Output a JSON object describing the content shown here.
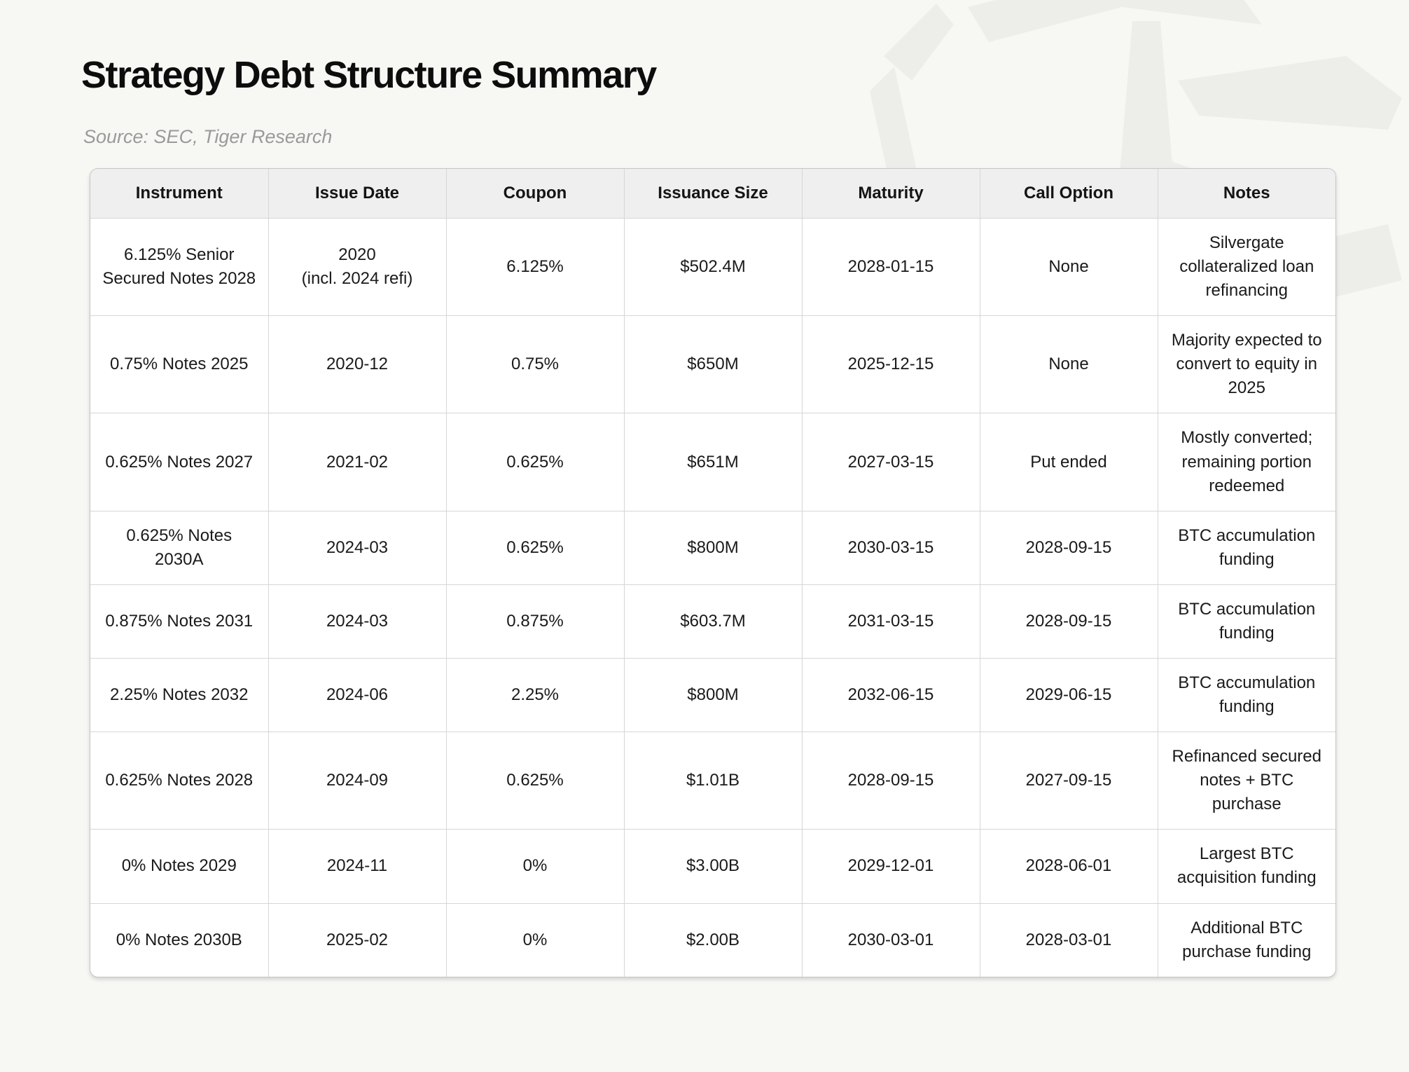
{
  "page": {
    "title": "Strategy Debt Structure Summary",
    "source": "Source: SEC, Tiger Research"
  },
  "colors": {
    "page_bg": "#f7f7f4",
    "header_bg": "#efefef",
    "table_border": "#c6c6c6",
    "grid_line": "#d6d6d6",
    "text": "#1a1a1a",
    "muted_text": "#9a9a9a",
    "watermark": "#edede9"
  },
  "icons": {
    "watermark": "tiger-origami-logo"
  },
  "chart_data": {
    "type": "table",
    "title": "Strategy Debt Structure Summary",
    "subtitle": "Source: SEC, Tiger Research",
    "columns": [
      "Instrument",
      "Issue Date",
      "Coupon",
      "Issuance Size",
      "Maturity",
      "Call Option",
      "Notes"
    ],
    "rows": [
      [
        "6.125% Senior Secured Notes 2028",
        "2020\n(incl. 2024 refi)",
        "6.125%",
        "$502.4M",
        "2028-01-15",
        "None",
        "Silvergate collateralized loan refinancing"
      ],
      [
        "0.75% Notes 2025",
        "2020-12",
        "0.75%",
        "$650M",
        "2025-12-15",
        "None",
        "Majority expected to convert to equity in 2025"
      ],
      [
        "0.625% Notes 2027",
        "2021-02",
        "0.625%",
        "$651M",
        "2027-03-15",
        "Put ended",
        "Mostly converted; remaining portion redeemed"
      ],
      [
        "0.625% Notes 2030A",
        "2024-03",
        "0.625%",
        "$800M",
        "2030-03-15",
        "2028-09-15",
        "BTC accumulation funding"
      ],
      [
        "0.875% Notes 2031",
        "2024-03",
        "0.875%",
        "$603.7M",
        "2031-03-15",
        "2028-09-15",
        "BTC accumulation funding"
      ],
      [
        "2.25% Notes 2032",
        "2024-06",
        "2.25%",
        "$800M",
        "2032-06-15",
        "2029-06-15",
        "BTC accumulation funding"
      ],
      [
        "0.625% Notes 2028",
        "2024-09",
        "0.625%",
        "$1.01B",
        "2028-09-15",
        "2027-09-15",
        "Refinanced secured notes + BTC purchase"
      ],
      [
        "0% Notes 2029",
        "2024-11",
        "0%",
        "$3.00B",
        "2029-12-01",
        "2028-06-01",
        "Largest BTC acquisition funding"
      ],
      [
        "0% Notes 2030B",
        "2025-02",
        "0%",
        "$2.00B",
        "2030-03-01",
        "2028-03-01",
        "Additional BTC purchase funding"
      ]
    ]
  }
}
